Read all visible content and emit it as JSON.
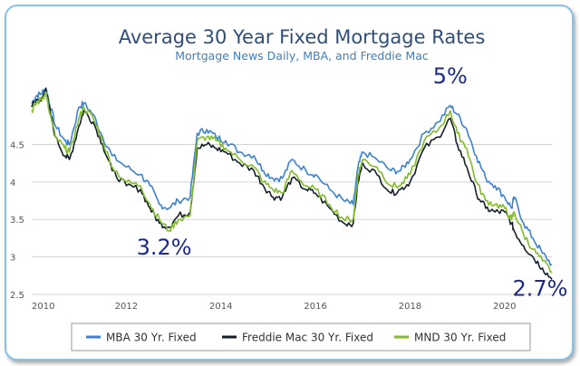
{
  "chart_data": {
    "type": "line",
    "title": "Average 30 Year Fixed Mortgage Rates",
    "subtitle": "Mortgage News Daily, MBA, and Freddie Mac",
    "xlabel": "",
    "ylabel": "",
    "xlim": [
      2010,
      2021
    ],
    "ylim": [
      2.5,
      5.4
    ],
    "x_ticks": [
      2010,
      2012,
      2014,
      2016,
      2018,
      2020
    ],
    "y_ticks": [
      2.5,
      3,
      3.5,
      4,
      4.5
    ],
    "grid": "horizontal",
    "legend_position": "bottom",
    "x": [
      2010.0,
      2010.1,
      2010.2,
      2010.3,
      2010.35,
      2010.5,
      2010.7,
      2010.8,
      2011.0,
      2011.1,
      2011.3,
      2011.5,
      2011.7,
      2012.0,
      2012.3,
      2012.5,
      2012.7,
      2012.9,
      2013.1,
      2013.35,
      2013.5,
      2013.7,
      2013.9,
      2014.1,
      2014.4,
      2014.7,
      2014.9,
      2015.1,
      2015.3,
      2015.5,
      2015.8,
      2016.0,
      2016.3,
      2016.6,
      2016.8,
      2016.9,
      2017.0,
      2017.3,
      2017.6,
      2017.8,
      2018.0,
      2018.3,
      2018.6,
      2018.85,
      2019.0,
      2019.2,
      2019.4,
      2019.6,
      2019.8,
      2020.0,
      2020.15,
      2020.2,
      2020.4,
      2020.6,
      2020.8,
      2021.0
    ],
    "series": [
      {
        "name": "MBA 30 Yr. Fixed",
        "color": "#3c82d0",
        "values": [
          5.05,
          5.15,
          5.18,
          5.25,
          5.12,
          4.75,
          4.55,
          4.5,
          5.0,
          5.05,
          4.9,
          4.6,
          4.35,
          4.2,
          4.1,
          3.95,
          3.7,
          3.65,
          3.75,
          3.8,
          4.65,
          4.7,
          4.6,
          4.55,
          4.4,
          4.35,
          4.15,
          4.05,
          4.05,
          4.3,
          4.15,
          4.1,
          3.9,
          3.75,
          3.7,
          4.2,
          4.4,
          4.3,
          4.15,
          4.15,
          4.3,
          4.65,
          4.8,
          5.02,
          4.9,
          4.7,
          4.35,
          4.05,
          3.95,
          3.8,
          3.65,
          3.8,
          3.45,
          3.25,
          3.05,
          2.9
        ]
      },
      {
        "name": "Freddie Mac 30 Yr. Fixed",
        "color": "#15202b",
        "values": [
          5.0,
          5.1,
          5.08,
          5.25,
          5.05,
          4.6,
          4.35,
          4.3,
          4.75,
          4.95,
          4.8,
          4.5,
          4.15,
          3.95,
          3.9,
          3.65,
          3.45,
          3.4,
          3.55,
          3.6,
          4.45,
          4.5,
          4.45,
          4.4,
          4.25,
          4.15,
          3.95,
          3.8,
          3.8,
          4.05,
          3.9,
          3.85,
          3.65,
          3.45,
          3.45,
          4.0,
          4.25,
          4.1,
          3.85,
          3.9,
          4.0,
          4.45,
          4.6,
          4.85,
          4.5,
          4.2,
          3.85,
          3.65,
          3.6,
          3.6,
          3.45,
          3.35,
          3.15,
          3.0,
          2.85,
          2.7
        ]
      },
      {
        "name": "MND 30 Yr. Fixed",
        "color": "#82bb2b",
        "values": [
          4.95,
          5.05,
          5.1,
          5.2,
          5.0,
          4.6,
          4.45,
          4.4,
          4.85,
          5.0,
          4.85,
          4.55,
          4.2,
          4.0,
          3.95,
          3.7,
          3.5,
          3.35,
          3.5,
          3.55,
          4.55,
          4.6,
          4.55,
          4.45,
          4.3,
          4.2,
          4.0,
          3.9,
          3.85,
          4.15,
          3.95,
          3.9,
          3.7,
          3.5,
          3.5,
          4.1,
          4.3,
          4.2,
          3.95,
          3.95,
          4.1,
          4.55,
          4.7,
          4.95,
          4.65,
          4.45,
          4.0,
          3.75,
          3.7,
          3.65,
          3.5,
          3.6,
          3.3,
          3.1,
          2.95,
          2.8
        ]
      }
    ],
    "annotations": [
      {
        "text": "3.2%",
        "x": 2012.8,
        "y": 3.3
      },
      {
        "text": "5%",
        "x": 2018.85,
        "y": 5.05
      },
      {
        "text": "2.7%",
        "x": 2020.75,
        "y": 2.75
      }
    ]
  }
}
